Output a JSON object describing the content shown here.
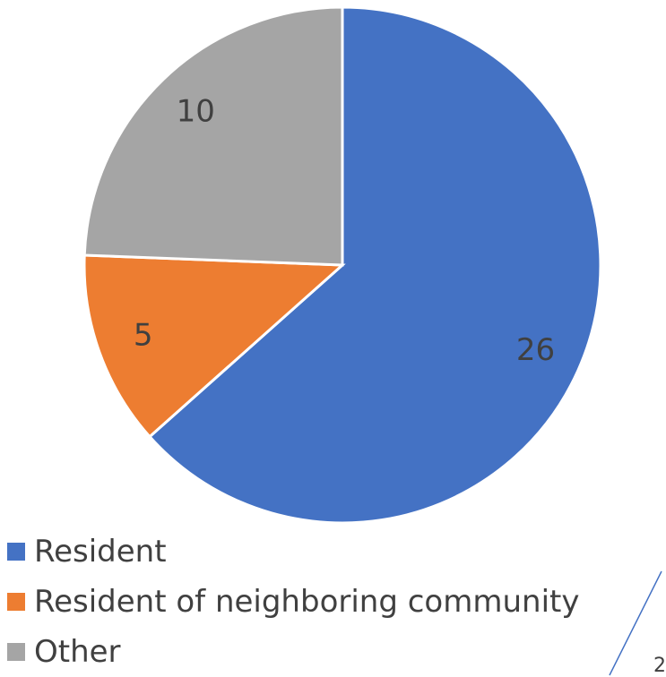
{
  "chart_data": {
    "type": "pie",
    "categories": [
      "Resident",
      "Resident of neighboring community",
      "Other"
    ],
    "values": [
      26,
      5,
      10
    ],
    "colors": [
      "#4472C4",
      "#ED7D31",
      "#A5A5A5"
    ],
    "data_labels": [
      "26",
      "5",
      "10"
    ],
    "legend_position": "bottom-left",
    "start_angle_deg": 0,
    "direction": "clockwise"
  },
  "legend": {
    "items": [
      {
        "label": "Resident",
        "color": "#4472C4"
      },
      {
        "label": "Resident of neighboring community",
        "color": "#ED7D31"
      },
      {
        "label": "Other",
        "color": "#A5A5A5"
      }
    ]
  },
  "decoration": {
    "accent_color": "#4472C4"
  },
  "page_number": "2"
}
